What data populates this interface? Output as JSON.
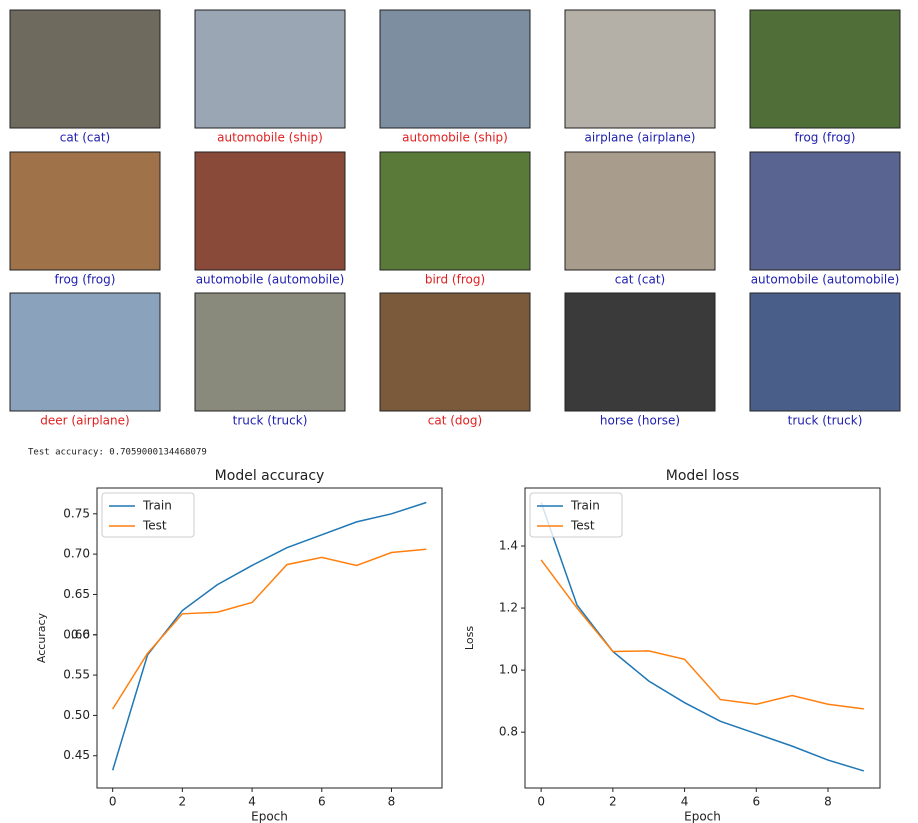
{
  "image_grid": {
    "labels": [
      {
        "text": "cat (cat)",
        "color": "#2020b0"
      },
      {
        "text": "automobile (ship)",
        "color": "#e02020"
      },
      {
        "text": "automobile (ship)",
        "color": "#e02020"
      },
      {
        "text": "airplane (airplane)",
        "color": "#2020b0"
      },
      {
        "text": "frog (frog)",
        "color": "#2020b0"
      },
      {
        "text": "frog (frog)",
        "color": "#2020b0"
      },
      {
        "text": "automobile (automobile)",
        "color": "#2020b0"
      },
      {
        "text": "bird (frog)",
        "color": "#e02020"
      },
      {
        "text": "cat (cat)",
        "color": "#2020b0"
      },
      {
        "text": "automobile (automobile)",
        "color": "#2020b0"
      },
      {
        "text": "deer (airplane)",
        "color": "#e02020"
      },
      {
        "text": "truck (truck)",
        "color": "#2020b0"
      },
      {
        "text": "cat (dog)",
        "color": "#e02020"
      },
      {
        "text": "horse (horse)",
        "color": "#2020b0"
      },
      {
        "text": "truck (truck)",
        "color": "#2020b0"
      }
    ]
  },
  "output_text": "Test accuracy: 0.7059000134468079",
  "chart_data": [
    {
      "type": "line",
      "title": "Model accuracy",
      "x_label": "Epoch",
      "y_label": "Accuracy",
      "x": [
        0,
        1,
        2,
        3,
        4,
        5,
        6,
        7,
        8,
        9
      ],
      "series": [
        {
          "name": "Train",
          "color": "#1f77b4",
          "values": [
            0.432,
            0.575,
            0.63,
            0.662,
            0.686,
            0.708,
            0.724,
            0.74,
            0.75,
            0.764
          ]
        },
        {
          "name": "Test",
          "color": "#ff7f0e",
          "values": [
            0.508,
            0.577,
            0.626,
            0.628,
            0.64,
            0.687,
            0.696,
            0.686,
            0.702,
            0.706
          ]
        }
      ],
      "xlim": [
        -0.45,
        9.45
      ],
      "xticks": [
        0,
        2,
        4,
        6,
        8
      ],
      "ylim": [
        0.41,
        0.782
      ],
      "yticks": [
        0.45,
        {
          "value": 0.5,
          "label": "0.50"
        },
        0.55,
        0.6,
        {
          "value": 0.6,
          "label": "0.60"
        },
        0.65,
        {
          "value": 0.7,
          "label": "0.70"
        },
        0.75
      ],
      "legend": "upper left"
    },
    {
      "type": "line",
      "title": "Model loss",
      "x_label": "Epoch",
      "y_label": "Loss",
      "x": [
        0,
        1,
        2,
        3,
        4,
        5,
        6,
        7,
        8,
        9
      ],
      "series": [
        {
          "name": "Train",
          "color": "#1f77b4",
          "values": [
            1.54,
            1.21,
            1.06,
            0.965,
            0.895,
            0.835,
            0.795,
            0.755,
            0.71,
            0.675
          ]
        },
        {
          "name": "Test",
          "color": "#ff7f0e",
          "values": [
            1.355,
            1.2,
            1.06,
            1.062,
            1.035,
            0.905,
            0.89,
            0.918,
            0.89,
            0.875
          ]
        }
      ],
      "xlim": [
        -0.45,
        9.45
      ],
      "xticks": [
        0,
        2,
        4,
        6,
        8
      ],
      "ylim": [
        0.62,
        1.587
      ],
      "yticks": [
        0.8,
        {
          "value": 1,
          "label": "1.0"
        },
        1.2,
        1.4
      ],
      "legend": "upper left"
    }
  ]
}
